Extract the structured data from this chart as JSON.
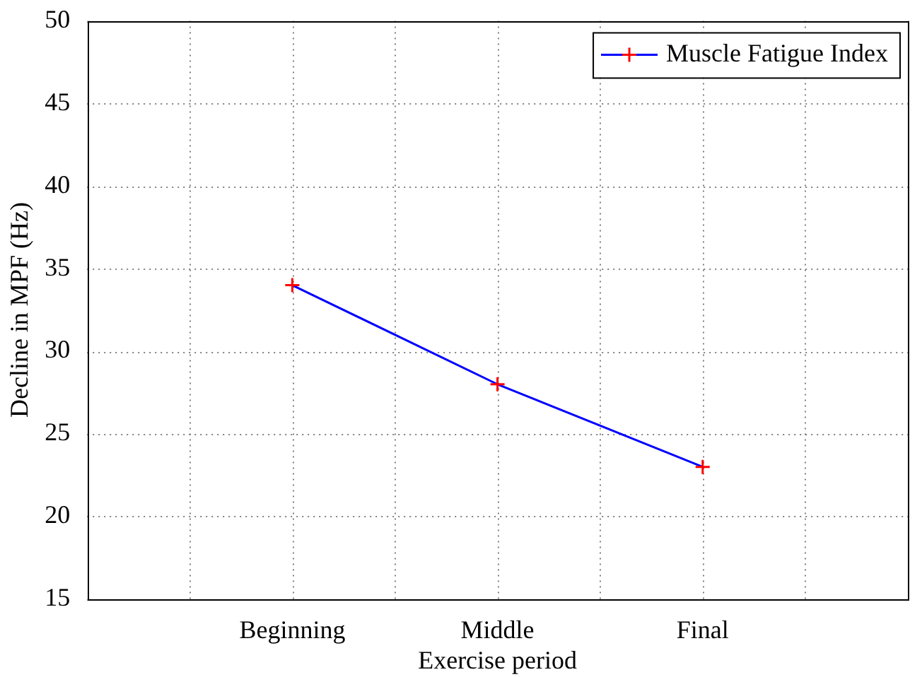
{
  "chart_data": {
    "type": "line",
    "xlabel": "Exercise period",
    "ylabel": "Decline in MPF (Hz)",
    "categories": [
      null,
      null,
      "Beginning",
      null,
      "Middle",
      null,
      "Final",
      null,
      null
    ],
    "series": [
      {
        "name": "Muscle Fatigue Index",
        "color": "#0000ff",
        "colors": [
          "#ff0000",
          "#ff0000",
          "#ff0000",
          "#ff0000",
          "#ff0000",
          "#ff0000",
          "#ff0000",
          "#ff0000",
          "#ff0000"
        ],
        "values": [
          null,
          null,
          34,
          null,
          28,
          null,
          23,
          null,
          null
        ]
      }
    ],
    "ylim": [
      15,
      50
    ],
    "yticks": [
      15,
      20,
      25,
      30,
      35,
      40,
      45,
      50
    ],
    "grid": true,
    "legend": "top right",
    "marker": "cross",
    "line_style": "solid"
  }
}
